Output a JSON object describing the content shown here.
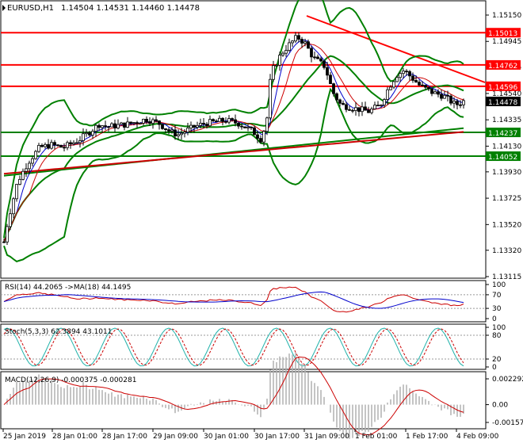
{
  "main_panel": {
    "symbol": "EURUSD,H1",
    "ohlc": "1.14504 1.14531 1.14460 1.14478",
    "y_ticks": [
      "1.15150",
      "1.14945",
      "1.14745",
      "1.14540",
      "1.14335",
      "1.14130",
      "1.13930",
      "1.13725",
      "1.13520",
      "1.13320",
      "1.13115"
    ],
    "levels": [
      {
        "value": "1.15013",
        "color": "#ff0000"
      },
      {
        "value": "1.14762",
        "color": "#ff0000"
      },
      {
        "value": "1.14596",
        "color": "#ff0000"
      },
      {
        "value": "1.14237",
        "color": "#008000"
      },
      {
        "value": "1.14052",
        "color": "#008000"
      }
    ],
    "current_price": "1.14478"
  },
  "rsi_panel": {
    "label": "RSI(14) 44.2065  ->MA(18) 44.1495",
    "ticks": [
      "100",
      "70",
      "30",
      "0"
    ]
  },
  "stoch_panel": {
    "label": "Stoch(5,3,3) 62.3894 43.1011",
    "ticks": [
      "100",
      "80",
      "20",
      "0"
    ]
  },
  "macd_panel": {
    "label": "MACD(12,26,9) -0.000375 -0.000281",
    "ticks": [
      "0.002292",
      "0.00",
      "-0.001579"
    ]
  },
  "x_axis": {
    "labels": [
      "25 Jan 2019",
      "28 Jan 01:00",
      "28 Jan 17:00",
      "29 Jan 09:00",
      "30 Jan 01:00",
      "30 Jan 17:00",
      "31 Jan 09:00",
      "1 Feb 01:00",
      "1 Feb 17:00",
      "4 Feb 09:00"
    ]
  },
  "colors": {
    "resistance": "#ff0000",
    "support": "#008000",
    "bollinger": "#008000",
    "ma_long": "#cc0000",
    "rsi": "#cc0000",
    "rsi_ma": "#0000cc",
    "stoch_main": "#20b2aa",
    "stoch_signal": "#cc0000",
    "macd_line": "#cc0000",
    "macd_hist": "#b0b0b0"
  }
}
